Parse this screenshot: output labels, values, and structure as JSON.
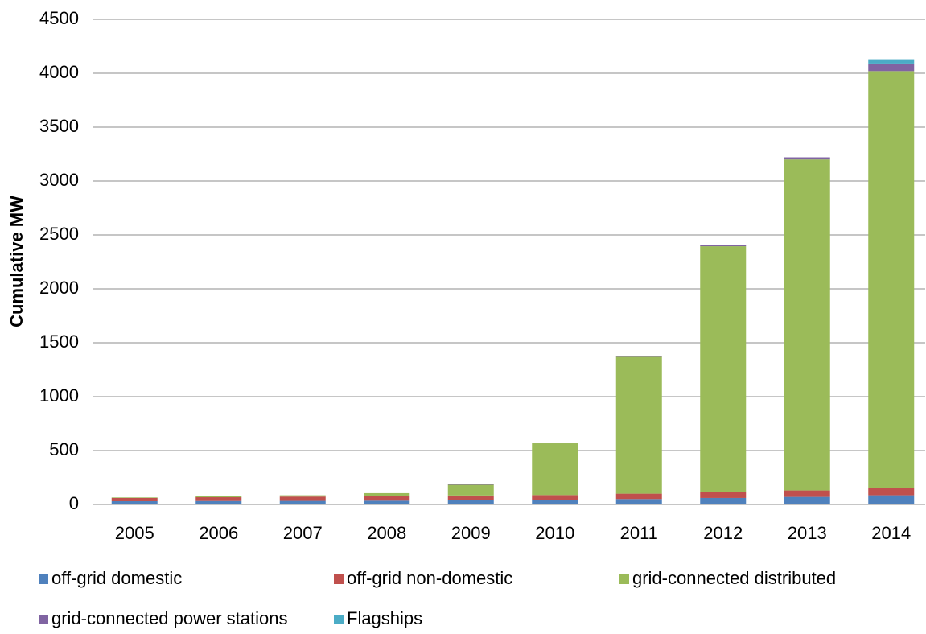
{
  "chart_data": {
    "type": "stacked-bar",
    "y_label": "Cumulative MW",
    "categories": [
      "2005",
      "2006",
      "2007",
      "2008",
      "2009",
      "2010",
      "2011",
      "2012",
      "2013",
      "2014"
    ],
    "series": [
      {
        "name": "off-grid domestic",
        "color": "#4f81bd",
        "values": [
          30,
          32,
          33,
          35,
          38,
          42,
          50,
          60,
          70,
          85
        ]
      },
      {
        "name": "off-grid non-domestic",
        "color": "#c0504d",
        "values": [
          30,
          35,
          40,
          40,
          45,
          45,
          50,
          55,
          60,
          65
        ]
      },
      {
        "name": "grid-connected distributed",
        "color": "#9bbb59",
        "values": [
          5,
          8,
          12,
          30,
          100,
          480,
          1270,
          2280,
          3070,
          3870
        ]
      },
      {
        "name": "grid-connected power stations",
        "color": "#8064a2",
        "values": [
          0,
          0,
          0,
          0,
          5,
          5,
          10,
          15,
          20,
          70
        ]
      },
      {
        "name": "Flagships",
        "color": "#4bacc6",
        "values": [
          0,
          0,
          0,
          0,
          0,
          0,
          0,
          0,
          0,
          40
        ]
      }
    ],
    "ylim": [
      0,
      4500
    ],
    "yticks": [
      0,
      500,
      1000,
      1500,
      2000,
      2500,
      3000,
      3500,
      4000,
      4500
    ],
    "grid": true,
    "legend": "bottom"
  }
}
